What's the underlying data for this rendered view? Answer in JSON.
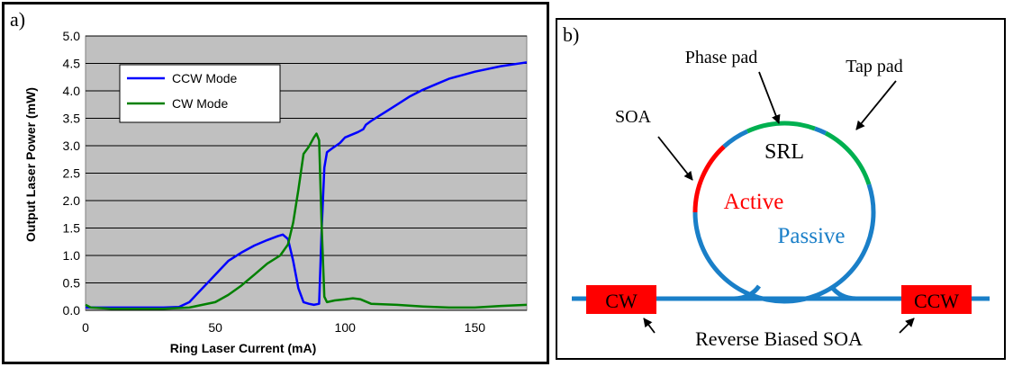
{
  "chart_data": {
    "type": "line",
    "panel_label": "a)",
    "xlabel": "Ring Laser Current (mA)",
    "ylabel": "Output Laser Power (mW)",
    "xlim": [
      0,
      170
    ],
    "ylim": [
      0,
      5.0
    ],
    "x_ticks": [
      0,
      50,
      100,
      150
    ],
    "y_ticks": [
      "0.0",
      "0.5",
      "1.0",
      "1.5",
      "2.0",
      "2.5",
      "3.0",
      "3.5",
      "4.0",
      "4.5",
      "5.0"
    ],
    "grid": true,
    "legend_position": "top-left",
    "series": [
      {
        "name": "CCW Mode",
        "color": "#0000ff",
        "points": [
          [
            0,
            0.05
          ],
          [
            10,
            0.05
          ],
          [
            20,
            0.05
          ],
          [
            30,
            0.05
          ],
          [
            36,
            0.06
          ],
          [
            40,
            0.15
          ],
          [
            43,
            0.3
          ],
          [
            47,
            0.5
          ],
          [
            50,
            0.65
          ],
          [
            55,
            0.9
          ],
          [
            60,
            1.05
          ],
          [
            65,
            1.18
          ],
          [
            70,
            1.28
          ],
          [
            74,
            1.35
          ],
          [
            76,
            1.38
          ],
          [
            78,
            1.3
          ],
          [
            80,
            0.9
          ],
          [
            82,
            0.4
          ],
          [
            84,
            0.15
          ],
          [
            86,
            0.12
          ],
          [
            88,
            0.1
          ],
          [
            90,
            0.12
          ],
          [
            91,
            1.5
          ],
          [
            92,
            2.6
          ],
          [
            93,
            2.88
          ],
          [
            95,
            2.95
          ],
          [
            98,
            3.05
          ],
          [
            100,
            3.15
          ],
          [
            105,
            3.25
          ],
          [
            107,
            3.3
          ],
          [
            108,
            3.38
          ],
          [
            110,
            3.45
          ],
          [
            115,
            3.6
          ],
          [
            120,
            3.75
          ],
          [
            125,
            3.9
          ],
          [
            130,
            4.02
          ],
          [
            135,
            4.12
          ],
          [
            140,
            4.22
          ],
          [
            150,
            4.35
          ],
          [
            160,
            4.45
          ],
          [
            170,
            4.52
          ]
        ]
      },
      {
        "name": "CW Mode",
        "color": "#008000",
        "points": [
          [
            0,
            0.1
          ],
          [
            2,
            0.05
          ],
          [
            10,
            0.03
          ],
          [
            30,
            0.03
          ],
          [
            40,
            0.05
          ],
          [
            45,
            0.1
          ],
          [
            50,
            0.15
          ],
          [
            55,
            0.28
          ],
          [
            60,
            0.45
          ],
          [
            65,
            0.65
          ],
          [
            70,
            0.85
          ],
          [
            75,
            1.0
          ],
          [
            78,
            1.2
          ],
          [
            80,
            1.6
          ],
          [
            82,
            2.2
          ],
          [
            84,
            2.85
          ],
          [
            86,
            2.98
          ],
          [
            88,
            3.15
          ],
          [
            89,
            3.22
          ],
          [
            90,
            3.1
          ],
          [
            91,
            1.5
          ],
          [
            92,
            0.25
          ],
          [
            93,
            0.15
          ],
          [
            96,
            0.18
          ],
          [
            100,
            0.2
          ],
          [
            103,
            0.22
          ],
          [
            106,
            0.2
          ],
          [
            110,
            0.12
          ],
          [
            120,
            0.1
          ],
          [
            130,
            0.07
          ],
          [
            140,
            0.05
          ],
          [
            150,
            0.05
          ],
          [
            160,
            0.08
          ],
          [
            170,
            0.1
          ]
        ]
      }
    ]
  },
  "diagram": {
    "panel_label": "b)",
    "labels": {
      "phase_pad": "Phase pad",
      "tap_pad": "Tap pad",
      "soa": "SOA",
      "srl": "SRL",
      "active": "Active",
      "passive": "Passive",
      "cw": "CW",
      "ccw": "CCW",
      "reverse_biased_soa": "Reverse Biased SOA"
    },
    "colors": {
      "active": "#ff0000",
      "passive": "#1a7fc8",
      "pad": "#00b050",
      "block": "#ff0000"
    }
  }
}
